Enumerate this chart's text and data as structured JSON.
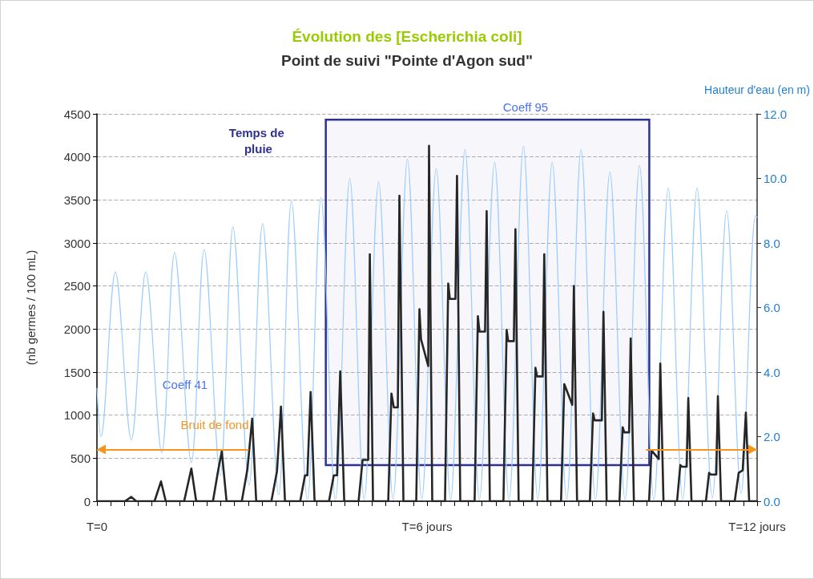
{
  "chart_data": {
    "type": "line",
    "title": "Évolution des [Escherichia coli]",
    "subtitle": "Point de suivi \"Pointe d'Agon sud\"",
    "ylabel": "(nb germes / 100 mL)",
    "y2label": "Hauteur d'eau (en m)",
    "marker": "none",
    "grid": "y",
    "xlim": [
      0,
      12
    ],
    "xticks": [
      {
        "value": 0,
        "label": "T=0"
      },
      {
        "value": 0.25,
        "label": null
      },
      {
        "value": 0.5,
        "label": null
      },
      {
        "value": 0.75,
        "label": null
      },
      {
        "value": 1,
        "label": null
      },
      {
        "value": 1.25,
        "label": null
      },
      {
        "value": 1.5,
        "label": null
      },
      {
        "value": 1.75,
        "label": null
      },
      {
        "value": 2,
        "label": null
      },
      {
        "value": 2.25,
        "label": null
      },
      {
        "value": 2.5,
        "label": null
      },
      {
        "value": 2.75,
        "label": null
      },
      {
        "value": 3,
        "label": null
      },
      {
        "value": 3.25,
        "label": null
      },
      {
        "value": 3.5,
        "label": null
      },
      {
        "value": 3.75,
        "label": null
      },
      {
        "value": 4,
        "label": null
      },
      {
        "value": 4.25,
        "label": null
      },
      {
        "value": 4.5,
        "label": null
      },
      {
        "value": 4.75,
        "label": null
      },
      {
        "value": 5,
        "label": null
      },
      {
        "value": 5.25,
        "label": null
      },
      {
        "value": 5.5,
        "label": null
      },
      {
        "value": 5.75,
        "label": null
      },
      {
        "value": 6,
        "label": "T=6 jours"
      },
      {
        "value": 6.25,
        "label": null
      },
      {
        "value": 6.5,
        "label": null
      },
      {
        "value": 6.75,
        "label": null
      },
      {
        "value": 7,
        "label": null
      },
      {
        "value": 7.25,
        "label": null
      },
      {
        "value": 7.5,
        "label": null
      },
      {
        "value": 7.75,
        "label": null
      },
      {
        "value": 8,
        "label": null
      },
      {
        "value": 8.25,
        "label": null
      },
      {
        "value": 8.5,
        "label": null
      },
      {
        "value": 8.75,
        "label": null
      },
      {
        "value": 9,
        "label": null
      },
      {
        "value": 9.25,
        "label": null
      },
      {
        "value": 9.5,
        "label": null
      },
      {
        "value": 9.75,
        "label": null
      },
      {
        "value": 10,
        "label": null
      },
      {
        "value": 10.25,
        "label": null
      },
      {
        "value": 10.5,
        "label": null
      },
      {
        "value": 10.75,
        "label": null
      },
      {
        "value": 11,
        "label": null
      },
      {
        "value": 11.25,
        "label": null
      },
      {
        "value": 11.5,
        "label": null
      },
      {
        "value": 11.75,
        "label": null
      },
      {
        "value": 12,
        "label": "T=12 jours"
      }
    ],
    "ylim": [
      0,
      4500
    ],
    "yticks": [
      0,
      500,
      1000,
      1500,
      2000,
      2500,
      3000,
      3500,
      4000,
      4500
    ],
    "y2lim": [
      0,
      12
    ],
    "y2ticks": [
      {
        "value": 0,
        "label": "0.0"
      },
      {
        "value": 2,
        "label": "2.0"
      },
      {
        "value": 4,
        "label": "4.0"
      },
      {
        "value": 6,
        "label": "6.0"
      },
      {
        "value": 8,
        "label": "8.0"
      },
      {
        "value": 10,
        "label": "10.0"
      },
      {
        "value": 12,
        "label": "12.0"
      }
    ],
    "series": [
      {
        "color": "#99ccff",
        "axis": "y2",
        "x": [
          0,
          0.073,
          0.335,
          0.625,
          0.887,
          1.178,
          1.411,
          1.716,
          1.949,
          2.24,
          2.473,
          2.764,
          3.011,
          3.302,
          3.535,
          3.825,
          4.073,
          4.335,
          4.596,
          4.858,
          5.12,
          5.382,
          5.644,
          5.905,
          6.167,
          6.429,
          6.691,
          6.953,
          7.229,
          7.491,
          7.753,
          8.015,
          8.276,
          8.538,
          8.8,
          9.062,
          9.324,
          9.6,
          9.862,
          10.124,
          10.385,
          10.647,
          10.909,
          11.185,
          11.447,
          11.709,
          11.971,
          12
        ],
        "values": [
          3.5,
          2.0,
          7.1,
          1.9,
          7.1,
          1.5,
          7.7,
          1.2,
          7.8,
          0.8,
          8.5,
          0.5,
          8.6,
          0.2,
          9.3,
          0.05,
          9.4,
          0.05,
          10.0,
          0.05,
          9.9,
          0.05,
          10.6,
          0.05,
          10.3,
          0.05,
          10.9,
          0.05,
          10.5,
          0.05,
          11.0,
          0.05,
          10.5,
          0.05,
          10.9,
          0.05,
          10.2,
          0.05,
          10.4,
          0.05,
          9.7,
          0.05,
          9.7,
          0.1,
          9.0,
          0.25,
          8.85,
          8.8
        ]
      },
      {
        "color": "#262626",
        "axis": "y",
        "x": [
          0,
          0.509,
          0.625,
          0.713,
          1.047,
          1.164,
          1.251,
          1.585,
          1.716,
          1.804,
          2.109,
          2.196,
          2.269,
          2.356,
          2.633,
          2.735,
          2.822,
          2.895,
          3.171,
          3.273,
          3.345,
          3.418,
          3.695,
          3.782,
          3.825,
          3.884,
          3.956,
          4.218,
          4.305,
          4.364,
          4.422,
          4.495,
          4.756,
          4.829,
          4.931,
          4.96,
          5.018,
          5.295,
          5.353,
          5.396,
          5.469,
          5.498,
          5.571,
          5.804,
          5.862,
          5.891,
          6.022,
          6.036,
          6.095,
          6.327,
          6.385,
          6.415,
          6.516,
          6.545,
          6.604,
          6.865,
          6.924,
          6.953,
          7.055,
          7.084,
          7.142,
          7.389,
          7.447,
          7.476,
          7.578,
          7.607,
          7.665,
          7.913,
          7.971,
          8.0,
          8.102,
          8.131,
          8.189,
          8.436,
          8.495,
          8.64,
          8.669,
          8.727,
          8.96,
          9.018,
          9.047,
          9.178,
          9.207,
          9.265,
          9.498,
          9.556,
          9.585,
          9.673,
          9.702,
          9.76,
          10.036,
          10.08,
          10.211,
          10.24,
          10.298,
          10.545,
          10.604,
          10.633,
          10.72,
          10.749,
          10.807,
          11.069,
          11.127,
          11.156,
          11.258,
          11.287,
          11.345,
          11.593,
          11.665,
          11.738,
          11.796,
          11.855,
          12
        ],
        "values": [
          0,
          0,
          50,
          0,
          0,
          230,
          0,
          0,
          380,
          0,
          0,
          330,
          580,
          0,
          0,
          370,
          960,
          0,
          0,
          350,
          1100,
          0,
          0,
          300,
          300,
          1270,
          0,
          0,
          300,
          300,
          1510,
          0,
          0,
          480,
          480,
          2870,
          0,
          0,
          1250,
          1090,
          1090,
          3550,
          0,
          0,
          2230,
          1880,
          1570,
          4130,
          0,
          0,
          2530,
          2350,
          2350,
          3780,
          0,
          0,
          2150,
          1970,
          1970,
          3370,
          0,
          0,
          1990,
          1860,
          1860,
          3160,
          0,
          0,
          1550,
          1450,
          1450,
          2870,
          0,
          0,
          1360,
          1120,
          2500,
          0,
          0,
          1020,
          940,
          940,
          2200,
          0,
          0,
          860,
          800,
          800,
          1890,
          0,
          0,
          590,
          490,
          1600,
          0,
          0,
          420,
          400,
          400,
          1200,
          0,
          0,
          330,
          310,
          310,
          1220,
          0,
          0,
          330,
          360,
          1030,
          0,
          0
        ]
      }
    ],
    "bands": [
      {
        "axis": "x",
        "from": 4.16,
        "to": 10.04,
        "label": "Temps de pluie",
        "color": "#2e3192"
      }
    ],
    "ref_lines": [
      {
        "axis": "y",
        "value": 600,
        "label": "Bruit de fond",
        "color": "#f7941d"
      }
    ],
    "annotations": [
      "Coeff 41",
      "Coeff 95"
    ]
  }
}
